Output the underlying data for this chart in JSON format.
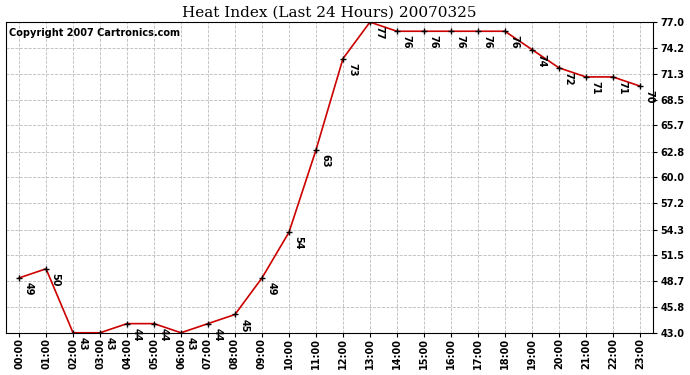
{
  "title": "Heat Index (Last 24 Hours) 20070325",
  "copyright": "Copyright 2007 Cartronics.com",
  "hours": [
    0,
    1,
    2,
    3,
    4,
    5,
    6,
    7,
    8,
    9,
    10,
    11,
    12,
    13,
    14,
    15,
    16,
    17,
    18,
    19,
    20,
    21,
    22,
    23
  ],
  "values": [
    49,
    50,
    43,
    43,
    44,
    44,
    43,
    44,
    45,
    49,
    54,
    63,
    73,
    77,
    76,
    76,
    76,
    76,
    76,
    74,
    72,
    71,
    71,
    70
  ],
  "ylim": [
    43.0,
    77.0
  ],
  "yticks": [
    43.0,
    45.8,
    48.7,
    51.5,
    54.3,
    57.2,
    60.0,
    62.8,
    65.7,
    68.5,
    71.3,
    74.2,
    77.0
  ],
  "line_color": "#cc0000",
  "grid_color": "#bbbbbb",
  "bg_color": "#ffffff",
  "title_fontsize": 11,
  "tick_fontsize": 7,
  "annotation_fontsize": 7,
  "copyright_fontsize": 7
}
